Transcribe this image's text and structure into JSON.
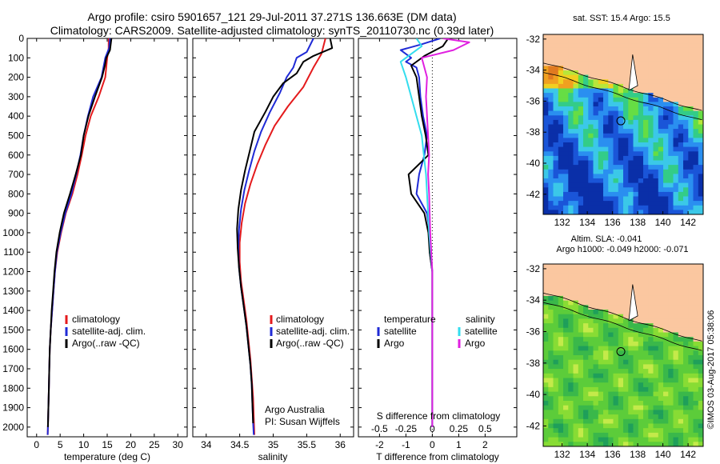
{
  "header": {
    "line1": "Argo profile: csiro 5901657_121 29-Jul-2011 37.271S 136.663E (DM data)",
    "line2": "Climatology: CARS2009. Satellite-adjusted climatology: synTS_20110730.nc (0.39d later)"
  },
  "colors": {
    "climatology": "#e41a1c",
    "satellite": "#1f2ad6",
    "argo": "#000000",
    "sat_salinity": "#33ddee",
    "argo_salinity": "#e020e0"
  },
  "chart_data": [
    {
      "type": "line",
      "name": "temperature",
      "xlabel": "temperature (deg C)",
      "ylabel": "",
      "xlim": [
        -2,
        32
      ],
      "ylim": [
        2050,
        0
      ],
      "xticks": [
        "0",
        "5",
        "10",
        "15",
        "20",
        "25",
        "30"
      ],
      "yticks": [
        "0",
        "100",
        "200",
        "300",
        "400",
        "500",
        "600",
        "700",
        "800",
        "900",
        "1000",
        "1100",
        "1200",
        "1300",
        "1400",
        "1500",
        "1600",
        "1700",
        "1800",
        "1900",
        "2000"
      ],
      "legend": [
        "climatology",
        "satellite-adj. clim.",
        "Argo(..raw -QC)"
      ],
      "series": [
        {
          "name": "climatology",
          "color": "#e41a1c",
          "points": [
            [
              15.3,
              0
            ],
            [
              15.3,
              50
            ],
            [
              15.0,
              100
            ],
            [
              14.6,
              200
            ],
            [
              13.2,
              300
            ],
            [
              11.5,
              400
            ],
            [
              10.4,
              500
            ],
            [
              9.6,
              600
            ],
            [
              8.7,
              700
            ],
            [
              7.6,
              800
            ],
            [
              6.2,
              900
            ],
            [
              5.2,
              1000
            ],
            [
              4.4,
              1100
            ],
            [
              3.9,
              1200
            ],
            [
              3.6,
              1300
            ],
            [
              3.3,
              1400
            ],
            [
              3.0,
              1500
            ],
            [
              2.8,
              1600
            ],
            [
              2.7,
              1700
            ],
            [
              2.6,
              1800
            ],
            [
              2.5,
              1900
            ],
            [
              2.4,
              2000
            ],
            [
              2.35,
              2040
            ]
          ]
        },
        {
          "name": "satellite-adj. clim.",
          "color": "#1f2ad6",
          "points": [
            [
              15.6,
              0
            ],
            [
              15.4,
              50
            ],
            [
              14.6,
              100
            ],
            [
              13.8,
              200
            ],
            [
              12.0,
              300
            ],
            [
              10.9,
              400
            ],
            [
              10.0,
              500
            ],
            [
              9.3,
              600
            ],
            [
              8.4,
              700
            ],
            [
              7.4,
              800
            ],
            [
              6.1,
              900
            ],
            [
              5.1,
              1000
            ],
            [
              4.3,
              1100
            ],
            [
              3.9,
              1200
            ],
            [
              3.6,
              1300
            ],
            [
              3.3,
              1400
            ],
            [
              3.0,
              1500
            ],
            [
              2.8,
              1600
            ],
            [
              2.7,
              1700
            ],
            [
              2.6,
              1800
            ],
            [
              2.5,
              1900
            ],
            [
              2.4,
              2000
            ],
            [
              2.35,
              2040
            ]
          ]
        },
        {
          "name": "Argo(..raw -QC)",
          "color": "#000000",
          "points": [
            [
              15.9,
              0
            ],
            [
              15.6,
              60
            ],
            [
              14.8,
              100
            ],
            [
              14.5,
              140
            ],
            [
              13.9,
              200
            ],
            [
              12.4,
              300
            ],
            [
              11.0,
              400
            ],
            [
              10.0,
              500
            ],
            [
              9.4,
              600
            ],
            [
              8.3,
              700
            ],
            [
              7.1,
              800
            ],
            [
              5.8,
              900
            ],
            [
              4.9,
              1000
            ],
            [
              4.2,
              1100
            ],
            [
              3.8,
              1200
            ],
            [
              3.5,
              1300
            ],
            [
              3.2,
              1400
            ],
            [
              3.0,
              1500
            ],
            [
              2.8,
              1600
            ],
            [
              2.7,
              1700
            ],
            [
              2.6,
              1800
            ],
            [
              2.5,
              1900
            ],
            [
              2.4,
              2000
            ]
          ]
        }
      ]
    },
    {
      "type": "line",
      "name": "salinity",
      "xlabel": "salinity",
      "ylabel": "",
      "xlim": [
        33.8,
        36.2
      ],
      "ylim": [
        2050,
        0
      ],
      "xticks": [
        "34",
        "34.5",
        "35",
        "35.5",
        "36"
      ],
      "legend": [
        "climatology",
        "satellite-adj. clim.",
        "Argo(..raw -QC)"
      ],
      "annotation": [
        "Argo Australia",
        "PI: Susan Wijffels"
      ],
      "series": [
        {
          "name": "climatology",
          "color": "#e41a1c",
          "points": [
            [
              35.78,
              0
            ],
            [
              35.72,
              80
            ],
            [
              35.6,
              150
            ],
            [
              35.45,
              250
            ],
            [
              35.22,
              350
            ],
            [
              35.02,
              450
            ],
            [
              34.88,
              550
            ],
            [
              34.76,
              650
            ],
            [
              34.66,
              750
            ],
            [
              34.58,
              850
            ],
            [
              34.53,
              950
            ],
            [
              34.5,
              1050
            ],
            [
              34.5,
              1150
            ],
            [
              34.52,
              1250
            ],
            [
              34.56,
              1350
            ],
            [
              34.6,
              1450
            ],
            [
              34.63,
              1550
            ],
            [
              34.66,
              1650
            ],
            [
              34.68,
              1750
            ],
            [
              34.7,
              1850
            ],
            [
              34.71,
              1950
            ],
            [
              34.72,
              2040
            ]
          ]
        },
        {
          "name": "satellite-adj. clim.",
          "color": "#1f2ad6",
          "points": [
            [
              35.6,
              0
            ],
            [
              35.5,
              70
            ],
            [
              35.35,
              100
            ],
            [
              35.3,
              150
            ],
            [
              35.2,
              200
            ],
            [
              35.1,
              280
            ],
            [
              34.95,
              380
            ],
            [
              34.82,
              480
            ],
            [
              34.72,
              580
            ],
            [
              34.64,
              680
            ],
            [
              34.57,
              780
            ],
            [
              34.52,
              880
            ],
            [
              34.49,
              980
            ],
            [
              34.48,
              1080
            ],
            [
              34.49,
              1180
            ],
            [
              34.52,
              1280
            ],
            [
              34.56,
              1380
            ],
            [
              34.6,
              1480
            ],
            [
              34.63,
              1580
            ],
            [
              34.66,
              1680
            ],
            [
              34.68,
              1780
            ],
            [
              34.69,
              1880
            ],
            [
              34.7,
              1980
            ],
            [
              34.71,
              2040
            ]
          ]
        },
        {
          "name": "Argo(..raw -QC)",
          "color": "#000000",
          "points": [
            [
              35.85,
              0
            ],
            [
              35.88,
              50
            ],
            [
              35.6,
              90
            ],
            [
              35.45,
              120
            ],
            [
              35.35,
              180
            ],
            [
              35.15,
              230
            ],
            [
              35.0,
              300
            ],
            [
              34.88,
              380
            ],
            [
              34.72,
              480
            ],
            [
              34.65,
              580
            ],
            [
              34.58,
              680
            ],
            [
              34.52,
              780
            ],
            [
              34.48,
              880
            ],
            [
              34.46,
              980
            ],
            [
              34.47,
              1080
            ],
            [
              34.49,
              1180
            ],
            [
              34.52,
              1280
            ],
            [
              34.56,
              1380
            ],
            [
              34.6,
              1480
            ],
            [
              34.63,
              1580
            ],
            [
              34.66,
              1680
            ],
            [
              34.68,
              1780
            ],
            [
              34.69,
              1880
            ],
            [
              34.7,
              1980
            ]
          ]
        }
      ]
    },
    {
      "type": "line",
      "name": "difference",
      "xlabel": "T difference from climatology",
      "xlabel2": "S difference from climatology",
      "xlim": [
        -2.8,
        3.2
      ],
      "ylim": [
        2050,
        0
      ],
      "xticks": [
        "-2",
        "-1",
        "0",
        "1",
        "2"
      ],
      "xticks2": [
        "-0.5",
        "-0.25",
        "0",
        "0.25",
        "0.5"
      ],
      "legend_headers": [
        "temperature",
        "salinity"
      ],
      "legend": [
        "satellite",
        "Argo",
        "satellite",
        "Argo"
      ],
      "series": [
        {
          "name": "satellite",
          "quantity": "temperature",
          "color": "#1f2ad6",
          "points": [
            [
              0.3,
              0
            ],
            [
              -0.4,
              30
            ],
            [
              -1.2,
              60
            ],
            [
              -0.8,
              100
            ],
            [
              -1.0,
              120
            ],
            [
              -0.6,
              150
            ],
            [
              -0.5,
              200
            ],
            [
              -0.45,
              300
            ],
            [
              -0.35,
              400
            ],
            [
              -0.2,
              500
            ],
            [
              -0.3,
              600
            ],
            [
              -0.5,
              700
            ],
            [
              -0.6,
              800
            ],
            [
              -0.2,
              900
            ],
            [
              -0.1,
              1000
            ],
            [
              -0.1,
              1100
            ],
            [
              0,
              1200
            ],
            [
              0,
              1400
            ],
            [
              0,
              1600
            ],
            [
              0,
              2000
            ]
          ]
        },
        {
          "name": "Argo",
          "quantity": "temperature",
          "color": "#000000",
          "points": [
            [
              0.6,
              0
            ],
            [
              0.4,
              40
            ],
            [
              -0.3,
              90
            ],
            [
              -0.8,
              140
            ],
            [
              -0.6,
              200
            ],
            [
              -0.5,
              300
            ],
            [
              -0.4,
              400
            ],
            [
              -0.25,
              500
            ],
            [
              -0.15,
              600
            ],
            [
              -0.9,
              700
            ],
            [
              -0.8,
              800
            ],
            [
              -0.3,
              900
            ],
            [
              -0.15,
              1000
            ],
            [
              -0.1,
              1100
            ],
            [
              0,
              1200
            ],
            [
              0,
              1400
            ],
            [
              0,
              1600
            ],
            [
              0,
              2000
            ]
          ]
        },
        {
          "name": "satellite",
          "quantity": "salinity",
          "color": "#33ddee",
          "points": [
            [
              -0.15,
              0
            ],
            [
              -0.1,
              40
            ],
            [
              -0.2,
              80
            ],
            [
              -0.3,
              120
            ],
            [
              -0.25,
              200
            ],
            [
              -0.2,
              300
            ],
            [
              -0.15,
              400
            ],
            [
              -0.1,
              500
            ],
            [
              -0.08,
              600
            ],
            [
              -0.06,
              700
            ],
            [
              -0.05,
              800
            ],
            [
              -0.03,
              1000
            ],
            [
              0,
              1200
            ],
            [
              0,
              2000
            ]
          ]
        },
        {
          "name": "Argo",
          "quantity": "salinity",
          "color": "#e020e0",
          "points": [
            [
              0.1,
              0
            ],
            [
              0.35,
              20
            ],
            [
              0.2,
              60
            ],
            [
              -0.1,
              100
            ],
            [
              -0.05,
              200
            ],
            [
              -0.06,
              300
            ],
            [
              -0.05,
              400
            ],
            [
              -0.04,
              500
            ],
            [
              -0.03,
              600
            ],
            [
              -0.04,
              700
            ],
            [
              -0.03,
              800
            ],
            [
              -0.02,
              1000
            ],
            [
              0,
              1200
            ],
            [
              0,
              2000
            ]
          ]
        }
      ]
    },
    {
      "type": "heatmap",
      "name": "sst-map",
      "title": "sat. SST: 15.4  Argo: 15.5",
      "xticks": [
        "132",
        "134",
        "136",
        "138",
        "140",
        "142"
      ],
      "yticks": [
        "-32",
        "-34",
        "-36",
        "-38",
        "-40",
        "-42"
      ],
      "xlim": [
        130.5,
        143.2
      ],
      "ylim": [
        -43.3,
        -31.7
      ],
      "marker": {
        "lon": 136.663,
        "lat": -37.271
      }
    },
    {
      "type": "heatmap",
      "name": "sla-map",
      "title": "Altim. SLA: -0.041",
      "subtitle": "Argo h1000: -0.049 h2000: -0.071",
      "xticks": [
        "132",
        "134",
        "136",
        "138",
        "140",
        "142"
      ],
      "yticks": [
        "-32",
        "-34",
        "-36",
        "-38",
        "-40",
        "-42"
      ],
      "xlim": [
        130.5,
        143.2
      ],
      "ylim": [
        -43.3,
        -31.7
      ],
      "marker": {
        "lon": 136.663,
        "lat": -37.271
      }
    }
  ],
  "footer": {
    "credit": "©IMOS 03-Aug-2017 05:38:06"
  }
}
